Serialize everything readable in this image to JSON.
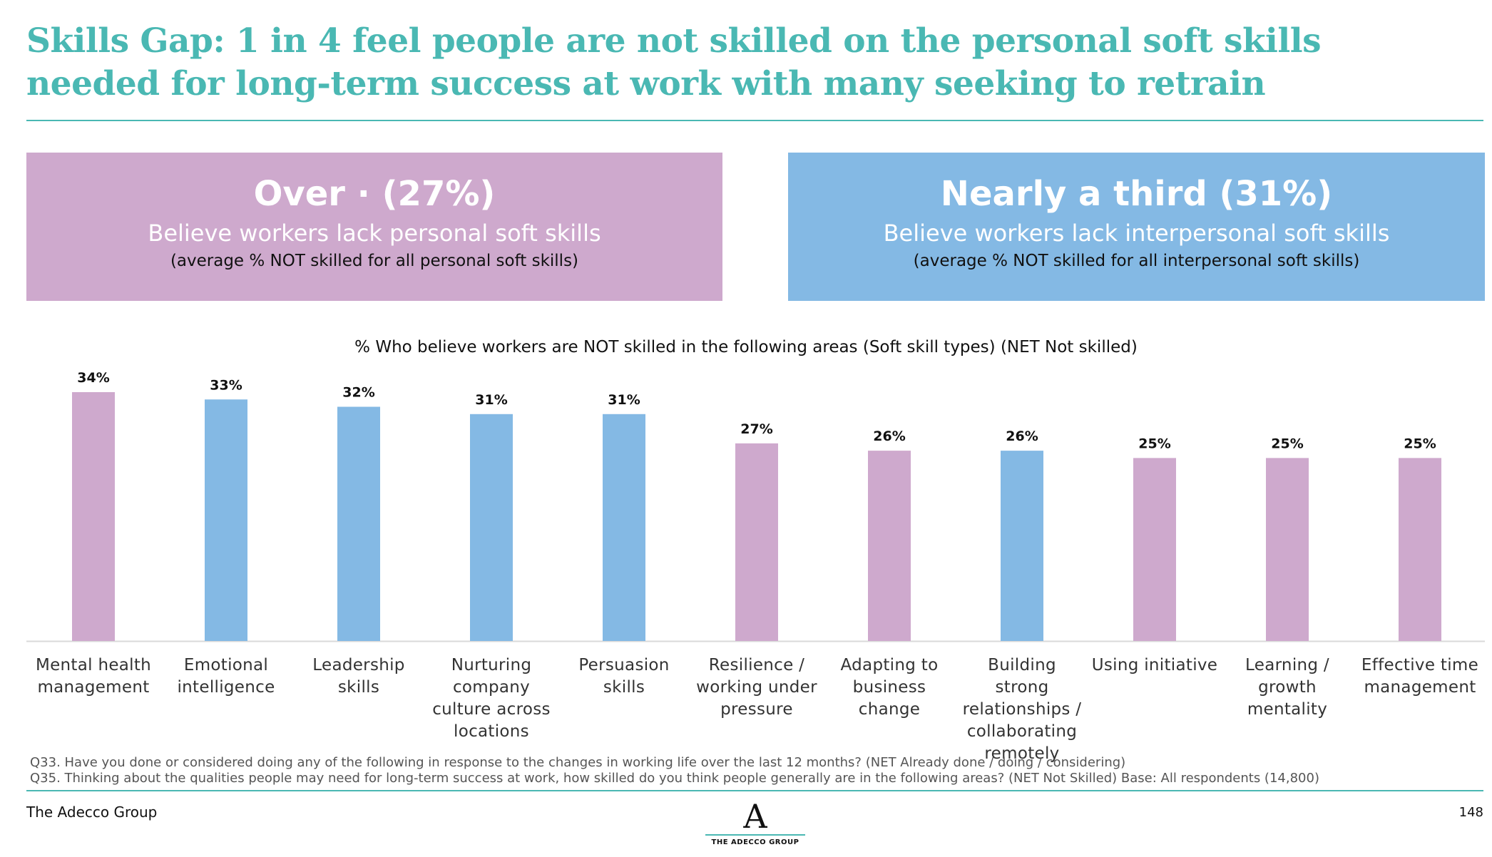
{
  "title": "Skills Gap: 1 in 4 feel people are not skilled on the personal soft skills needed for long-term success at work with many seeking to retrain",
  "boxes": {
    "left": {
      "headline": "Over · (27%)",
      "subtitle": "Believe workers lack personal soft skills",
      "note": "(average % NOT skilled for all personal soft skills)"
    },
    "right": {
      "headline": "Nearly a third (31%)",
      "subtitle": "Believe workers lack interpersonal soft skills",
      "note": "(average % NOT skilled for all interpersonal soft skills)"
    }
  },
  "chart_data": {
    "type": "bar",
    "title": "% Who believe workers are NOT skilled in the following areas (Soft skill types) (NET Not skilled)",
    "categories": [
      "Mental health management",
      "Emotional intelligence",
      "Leadership skills",
      "Nurturing company culture across locations",
      "Persuasion skills",
      "Resilience / working under pressure",
      "Adapting to business change",
      "Building strong relationships / collaborating remotely",
      "Using initiative",
      "Learning / growth mentality",
      "Effective time management"
    ],
    "values": [
      34,
      33,
      32,
      31,
      31,
      27,
      26,
      26,
      25,
      25,
      25
    ],
    "value_labels": [
      "34%",
      "33%",
      "32%",
      "31%",
      "31%",
      "27%",
      "26%",
      "26%",
      "25%",
      "25%",
      "25%"
    ],
    "bar_colors": [
      "#cea9cd",
      "#84b9e4",
      "#84b9e4",
      "#84b9e4",
      "#84b9e4",
      "#cea9cd",
      "#cea9cd",
      "#84b9e4",
      "#cea9cd",
      "#cea9cd",
      "#cea9cd"
    ],
    "ylim": [
      0,
      34
    ]
  },
  "footnotes": [
    "Q33. Have you done or considered doing any of the following in response to the changes in working life over the last 12 months? (NET Already done / doing / considering)",
    "Q35. Thinking about the qualities people may need for long-term success at work, how skilled do you think people generally are in the following areas? (NET Not Skilled) Base: All respondents (14,800)"
  ],
  "footer": {
    "company": "The Adecco Group",
    "logo_letter": "A",
    "logo_text": "THE ADECCO GROUP",
    "page_number": "148"
  },
  "colors": {
    "accent_teal": "#4ab8b3",
    "personal_pink": "#cea9cd",
    "interpersonal_blue": "#84b9e4"
  }
}
